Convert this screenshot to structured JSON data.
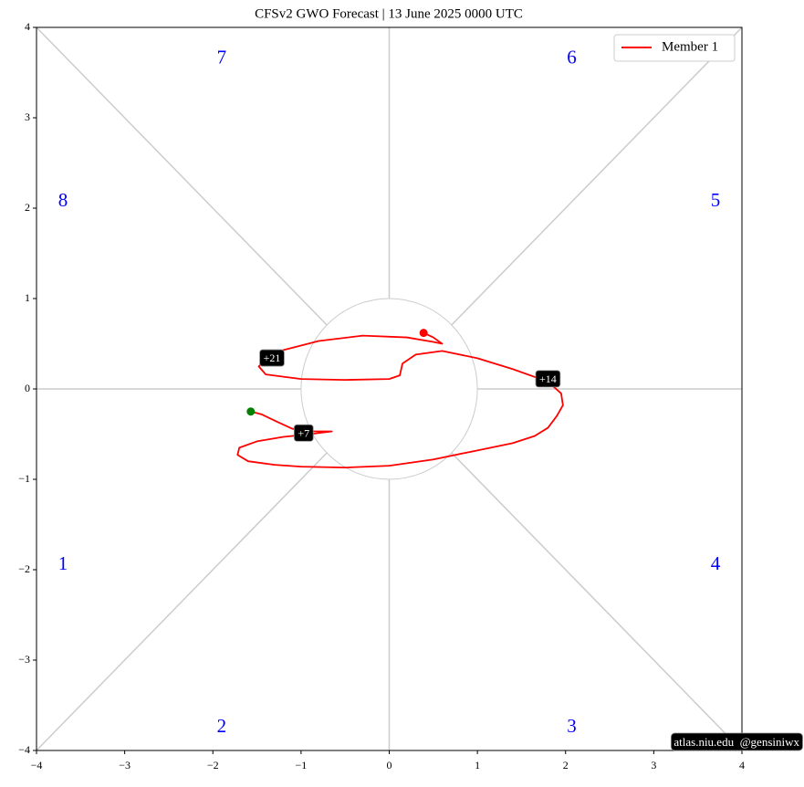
{
  "chart_data": {
    "type": "phase",
    "title": "CFSv2 GWO Forecast   |   13  June  2025 0000 UTC",
    "xlim": [
      -4,
      4
    ],
    "ylim": [
      -4,
      4
    ],
    "xticks": [
      {
        "value": -4,
        "label": "−4"
      },
      {
        "value": -3,
        "label": "−3"
      },
      {
        "value": -2,
        "label": "−2"
      },
      {
        "value": -1,
        "label": "−1"
      },
      0,
      1,
      2,
      3,
      4
    ],
    "yticks": [
      {
        "value": -4,
        "label": "−4"
      },
      {
        "value": -3,
        "label": "−3"
      },
      {
        "value": -2,
        "label": "−2"
      },
      {
        "value": -1,
        "label": "−1"
      },
      0,
      1,
      2,
      3,
      4
    ],
    "circle_radius": 1,
    "phases": [
      "1",
      "2",
      "3",
      "4",
      "5",
      "6",
      "7",
      "8"
    ],
    "legend": "upper right",
    "start_color": "green",
    "end_color": "red",
    "series": [
      {
        "name": "Member 1",
        "color": "#ff0000",
        "x": [
          -1.57,
          -1.45,
          -1.3,
          -1.1,
          -0.9,
          -0.65,
          -0.9,
          -1.2,
          -1.5,
          -1.7,
          -1.72,
          -1.6,
          -1.3,
          -1.0,
          -0.5,
          0,
          0.5,
          1.0,
          1.4,
          1.65,
          1.8,
          1.9,
          1.97,
          1.95,
          1.8,
          1.4,
          1.0,
          0.6,
          0.3,
          0.15,
          0.12,
          0,
          -0.5,
          -1.0,
          -1.4,
          -1.48,
          -1.4,
          -1.2,
          -0.8,
          -0.3,
          0.2,
          0.5,
          0.6,
          0.5,
          0.39
        ],
        "values": [
          -0.25,
          -0.28,
          -0.35,
          -0.44,
          -0.47,
          -0.47,
          -0.5,
          -0.53,
          -0.58,
          -0.65,
          -0.73,
          -0.8,
          -0.84,
          -0.86,
          -0.87,
          -0.85,
          -0.78,
          -0.68,
          -0.6,
          -0.52,
          -0.43,
          -0.3,
          -0.18,
          -0.05,
          0.08,
          0.22,
          0.34,
          0.42,
          0.38,
          0.28,
          0.15,
          0.11,
          0.1,
          0.11,
          0.16,
          0.25,
          0.32,
          0.43,
          0.53,
          0.59,
          0.57,
          0.52,
          0.5,
          0.57,
          0.62
        ]
      }
    ],
    "annotations": [
      {
        "text": "+7",
        "x": -0.97,
        "y": -0.5
      },
      {
        "text": "+14",
        "x": 1.8,
        "y": 0.1
      },
      {
        "text": "+21",
        "x": -1.33,
        "y": 0.33
      }
    ],
    "credit": "atlas.niu.edu  @gensiniwx"
  }
}
